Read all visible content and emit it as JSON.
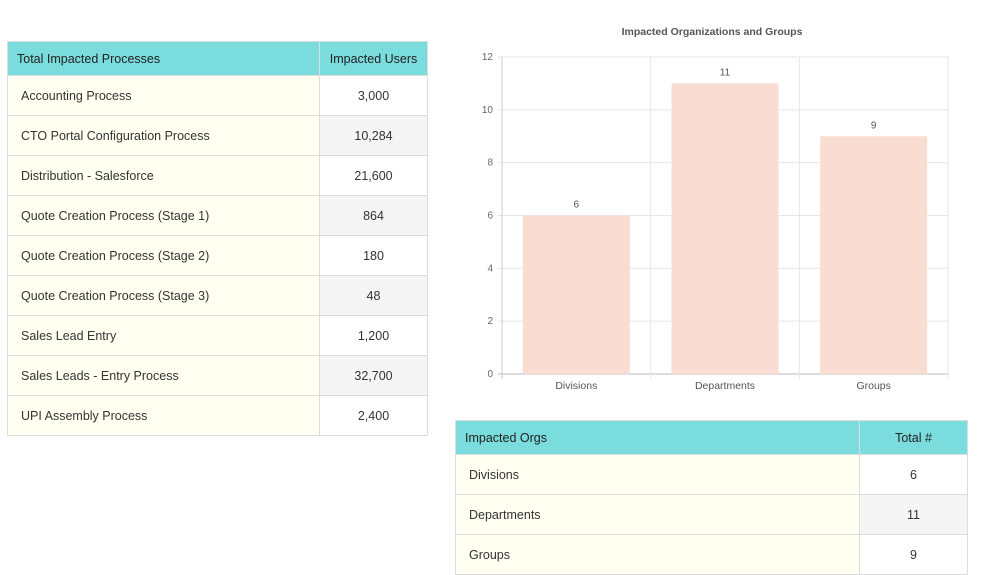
{
  "processes_table": {
    "headers": [
      "Total Impacted Processes",
      "Impacted Users"
    ],
    "rows": [
      {
        "name": "Accounting Process",
        "users": "3,000"
      },
      {
        "name": "CTO Portal Configuration Process",
        "users": "10,284"
      },
      {
        "name": "Distribution - Salesforce",
        "users": "21,600"
      },
      {
        "name": "Quote Creation Process (Stage 1)",
        "users": "864"
      },
      {
        "name": "Quote Creation Process (Stage 2)",
        "users": "180"
      },
      {
        "name": "Quote Creation Process (Stage 3)",
        "users": "48"
      },
      {
        "name": "Sales Lead Entry",
        "users": "1,200"
      },
      {
        "name": "Sales Leads - Entry Process",
        "users": "32,700"
      },
      {
        "name": "UPI Assembly Process",
        "users": "2,400"
      }
    ]
  },
  "chart_data": {
    "type": "bar",
    "title": "Impacted Organizations and Groups",
    "categories": [
      "Divisions",
      "Departments",
      "Groups"
    ],
    "values": [
      6,
      11,
      9
    ],
    "ylim": [
      0,
      12
    ],
    "yticks": [
      0,
      2,
      4,
      6,
      8,
      10,
      12
    ],
    "grid": true,
    "bar_color": "#f9ddd2",
    "data_labels": true
  },
  "orgs_table": {
    "headers": [
      "Impacted Orgs",
      "Total #"
    ],
    "rows": [
      {
        "name": "Divisions",
        "total": "6"
      },
      {
        "name": "Departments",
        "total": "11"
      },
      {
        "name": "Groups",
        "total": "9"
      }
    ]
  },
  "colors": {
    "header_bg": "#7adcdd",
    "name_cell_bg": "#fffff2",
    "alt_row_bg": "#f5f5f5"
  }
}
